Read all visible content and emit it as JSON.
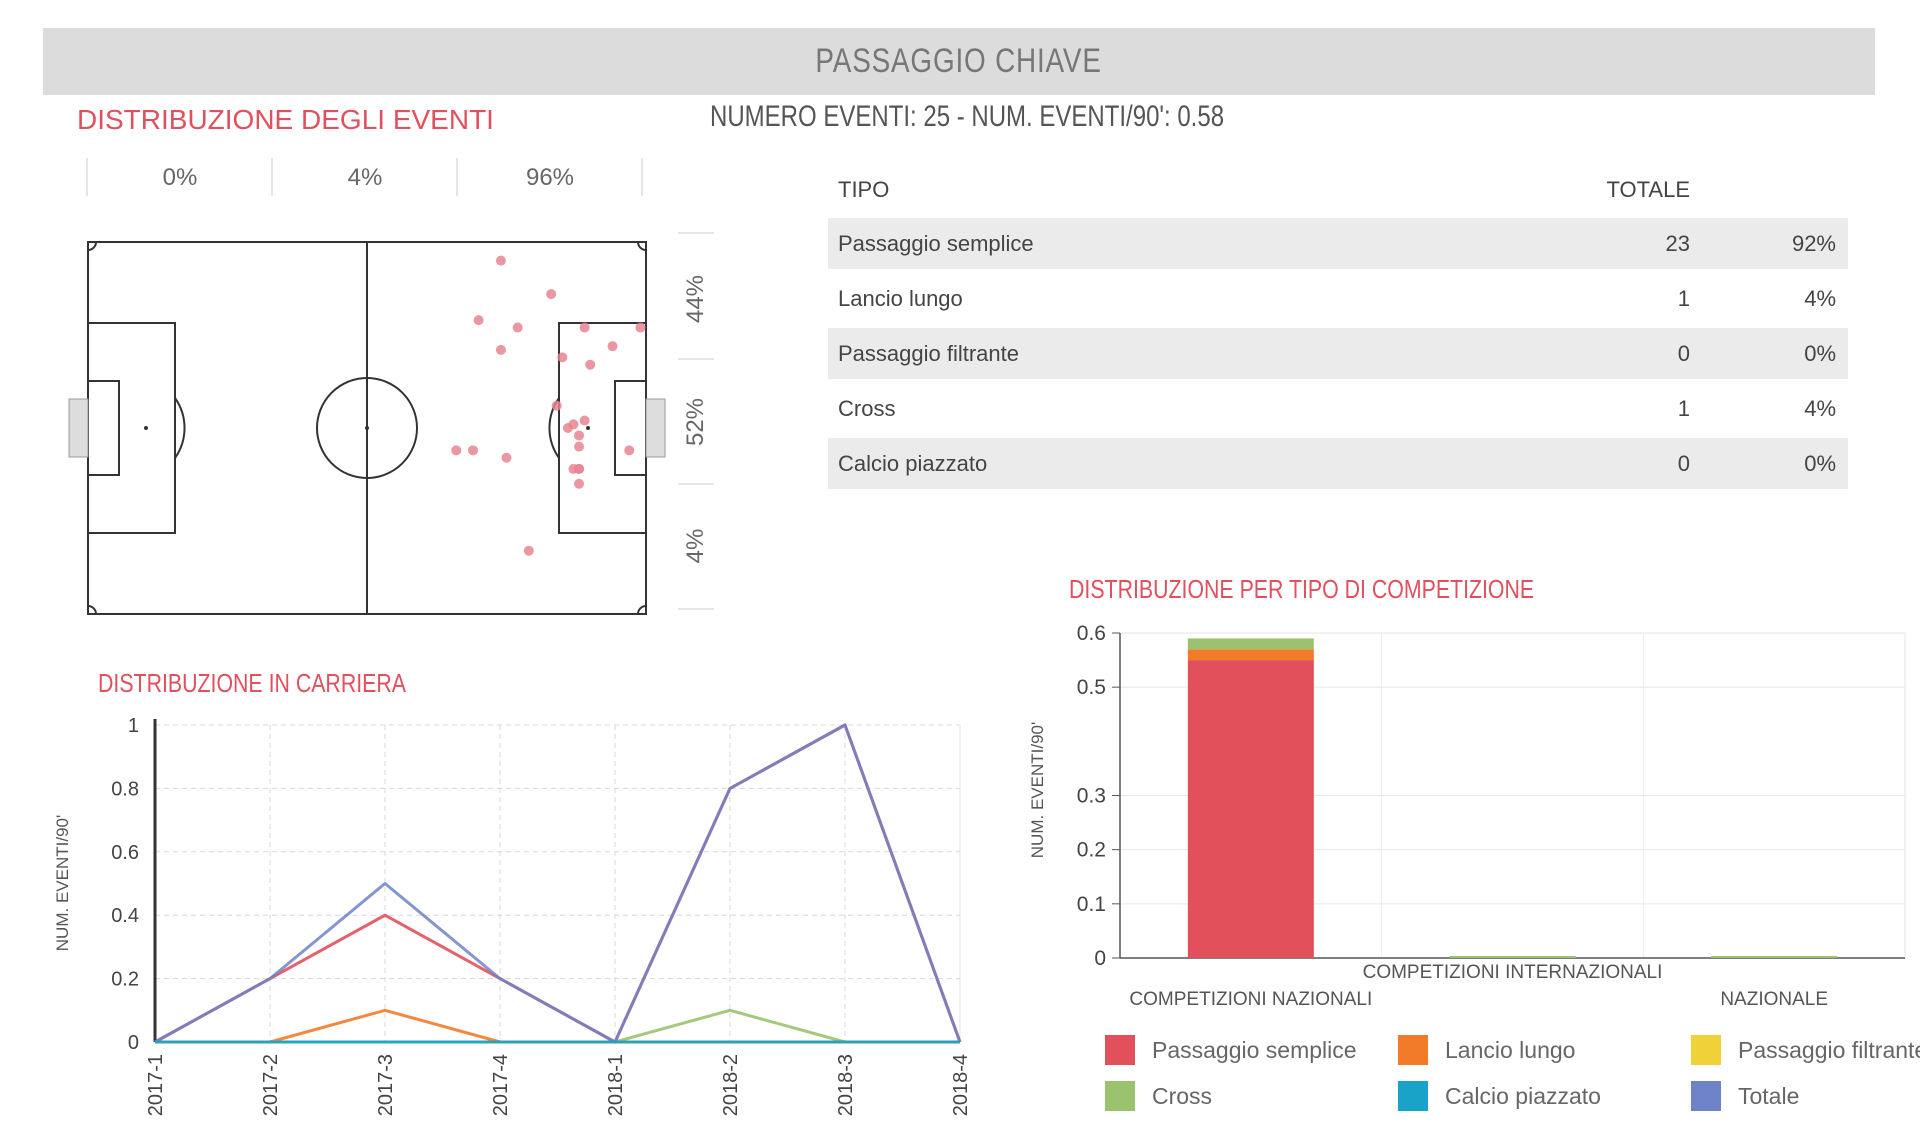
{
  "header": {
    "title": "PASSAGGIO CHIAVE"
  },
  "distribution": {
    "title": "DISTRIBUZIONE DEGLI EVENTI",
    "stats": "NUMERO EVENTI: 25  -  NUM. EVENTI/90': 0.58",
    "zones_x": [
      "0%",
      "4%",
      "96%"
    ],
    "zones_y": [
      "44%",
      "52%",
      "4%"
    ]
  },
  "table": {
    "headers": {
      "tipo": "TIPO",
      "totale": "TOTALE"
    },
    "rows": [
      {
        "tipo": "Passaggio semplice",
        "totale": "23",
        "pct": "92%"
      },
      {
        "tipo": "Lancio lungo",
        "totale": "1",
        "pct": "4%"
      },
      {
        "tipo": "Passaggio filtrante",
        "totale": "0",
        "pct": "0%"
      },
      {
        "tipo": "Cross",
        "totale": "1",
        "pct": "4%"
      },
      {
        "tipo": "Calcio piazzato",
        "totale": "0",
        "pct": "0%"
      }
    ]
  },
  "colors": {
    "accent": "#e0505e",
    "Passaggio semplice": "#e2505c",
    "Lancio lungo": "#f27b2a",
    "Passaggio filtrante": "#f0d13a",
    "Cross": "#9bc26f",
    "Calcio piazzato": "#1aa3c9",
    "Totale": "#6e82c8",
    "event_dot": "#e88592"
  },
  "career_title": "DISTRIBUZIONE IN CARRIERA",
  "competition_title": "DISTRIBUZIONE PER TIPO DI COMPETIZIONE",
  "legend": [
    {
      "name": "Passaggio semplice"
    },
    {
      "name": "Lancio lungo"
    },
    {
      "name": "Passaggio filtrante"
    },
    {
      "name": "Cross"
    },
    {
      "name": "Calcio piazzato"
    },
    {
      "name": "Totale"
    }
  ],
  "chart_data": [
    {
      "type": "scatter",
      "title": "DISTRIBUZIONE DEGLI EVENTI",
      "note": "event locations on pitch, x 0-100 left to right, y 0-100 top to bottom",
      "xlim": [
        0,
        100
      ],
      "ylim": [
        0,
        100
      ],
      "points": [
        {
          "x": 74,
          "y": 5
        },
        {
          "x": 83,
          "y": 14
        },
        {
          "x": 70,
          "y": 21
        },
        {
          "x": 77,
          "y": 23
        },
        {
          "x": 89,
          "y": 23
        },
        {
          "x": 99,
          "y": 23
        },
        {
          "x": 74,
          "y": 29
        },
        {
          "x": 94,
          "y": 28
        },
        {
          "x": 85,
          "y": 31
        },
        {
          "x": 90,
          "y": 33
        },
        {
          "x": 84,
          "y": 44
        },
        {
          "x": 87,
          "y": 49
        },
        {
          "x": 89,
          "y": 48
        },
        {
          "x": 86,
          "y": 50
        },
        {
          "x": 88,
          "y": 52
        },
        {
          "x": 66,
          "y": 56
        },
        {
          "x": 69,
          "y": 56
        },
        {
          "x": 75,
          "y": 58
        },
        {
          "x": 88,
          "y": 55
        },
        {
          "x": 97,
          "y": 56
        },
        {
          "x": 87,
          "y": 61
        },
        {
          "x": 88,
          "y": 61
        },
        {
          "x": 88,
          "y": 65
        },
        {
          "x": 79,
          "y": 83
        },
        {
          "x": 88,
          "y": 61
        }
      ]
    },
    {
      "type": "line",
      "title": "DISTRIBUZIONE IN CARRIERA",
      "ylabel": "NUM. EVENTI/90'",
      "x": [
        "2017-1",
        "2017-2",
        "2017-3",
        "2017-4",
        "2018-1",
        "2018-2",
        "2018-3",
        "2018-4"
      ],
      "yticks": [
        "0",
        "0.2",
        "0.4",
        "0.6",
        "0.8",
        "1"
      ],
      "ylim": [
        0,
        1
      ],
      "grid": true,
      "series": [
        {
          "name": "Passaggio semplice",
          "values": [
            0,
            0.2,
            0.4,
            0.2,
            0,
            0.8,
            1.0,
            0
          ]
        },
        {
          "name": "Lancio lungo",
          "values": [
            0,
            0,
            0.1,
            0,
            0,
            0,
            0,
            0
          ]
        },
        {
          "name": "Passaggio filtrante",
          "values": [
            0,
            0,
            0,
            0,
            0,
            0,
            0,
            0
          ]
        },
        {
          "name": "Cross",
          "values": [
            0,
            0,
            0,
            0,
            0,
            0.1,
            0,
            0
          ]
        },
        {
          "name": "Calcio piazzato",
          "values": [
            0,
            0,
            0,
            0,
            0,
            0,
            0,
            0
          ]
        },
        {
          "name": "Totale",
          "values": [
            0,
            0.2,
            0.5,
            0.2,
            0,
            0.8,
            1.0,
            0
          ]
        }
      ]
    },
    {
      "type": "bar",
      "stacked": true,
      "title": "DISTRIBUZIONE PER TIPO DI COMPETIZIONE",
      "ylabel": "NUM. EVENTI/90'",
      "categories": [
        "COMPETIZIONI NAZIONALI",
        "COMPETIZIONI INTERNAZIONALI",
        "NAZIONALE"
      ],
      "yticks": [
        "0",
        "0.1",
        "0.2",
        "0.3",
        "0.5",
        "0.6"
      ],
      "ylim": [
        0,
        0.6
      ],
      "series": [
        {
          "name": "Passaggio semplice",
          "values": [
            0.55,
            0,
            0
          ]
        },
        {
          "name": "Lancio lungo",
          "values": [
            0.02,
            0,
            0
          ]
        },
        {
          "name": "Passaggio filtrante",
          "values": [
            0,
            0,
            0
          ]
        },
        {
          "name": "Cross",
          "values": [
            0.02,
            0,
            0
          ]
        },
        {
          "name": "Calcio piazzato",
          "values": [
            0,
            0,
            0
          ]
        }
      ]
    }
  ]
}
